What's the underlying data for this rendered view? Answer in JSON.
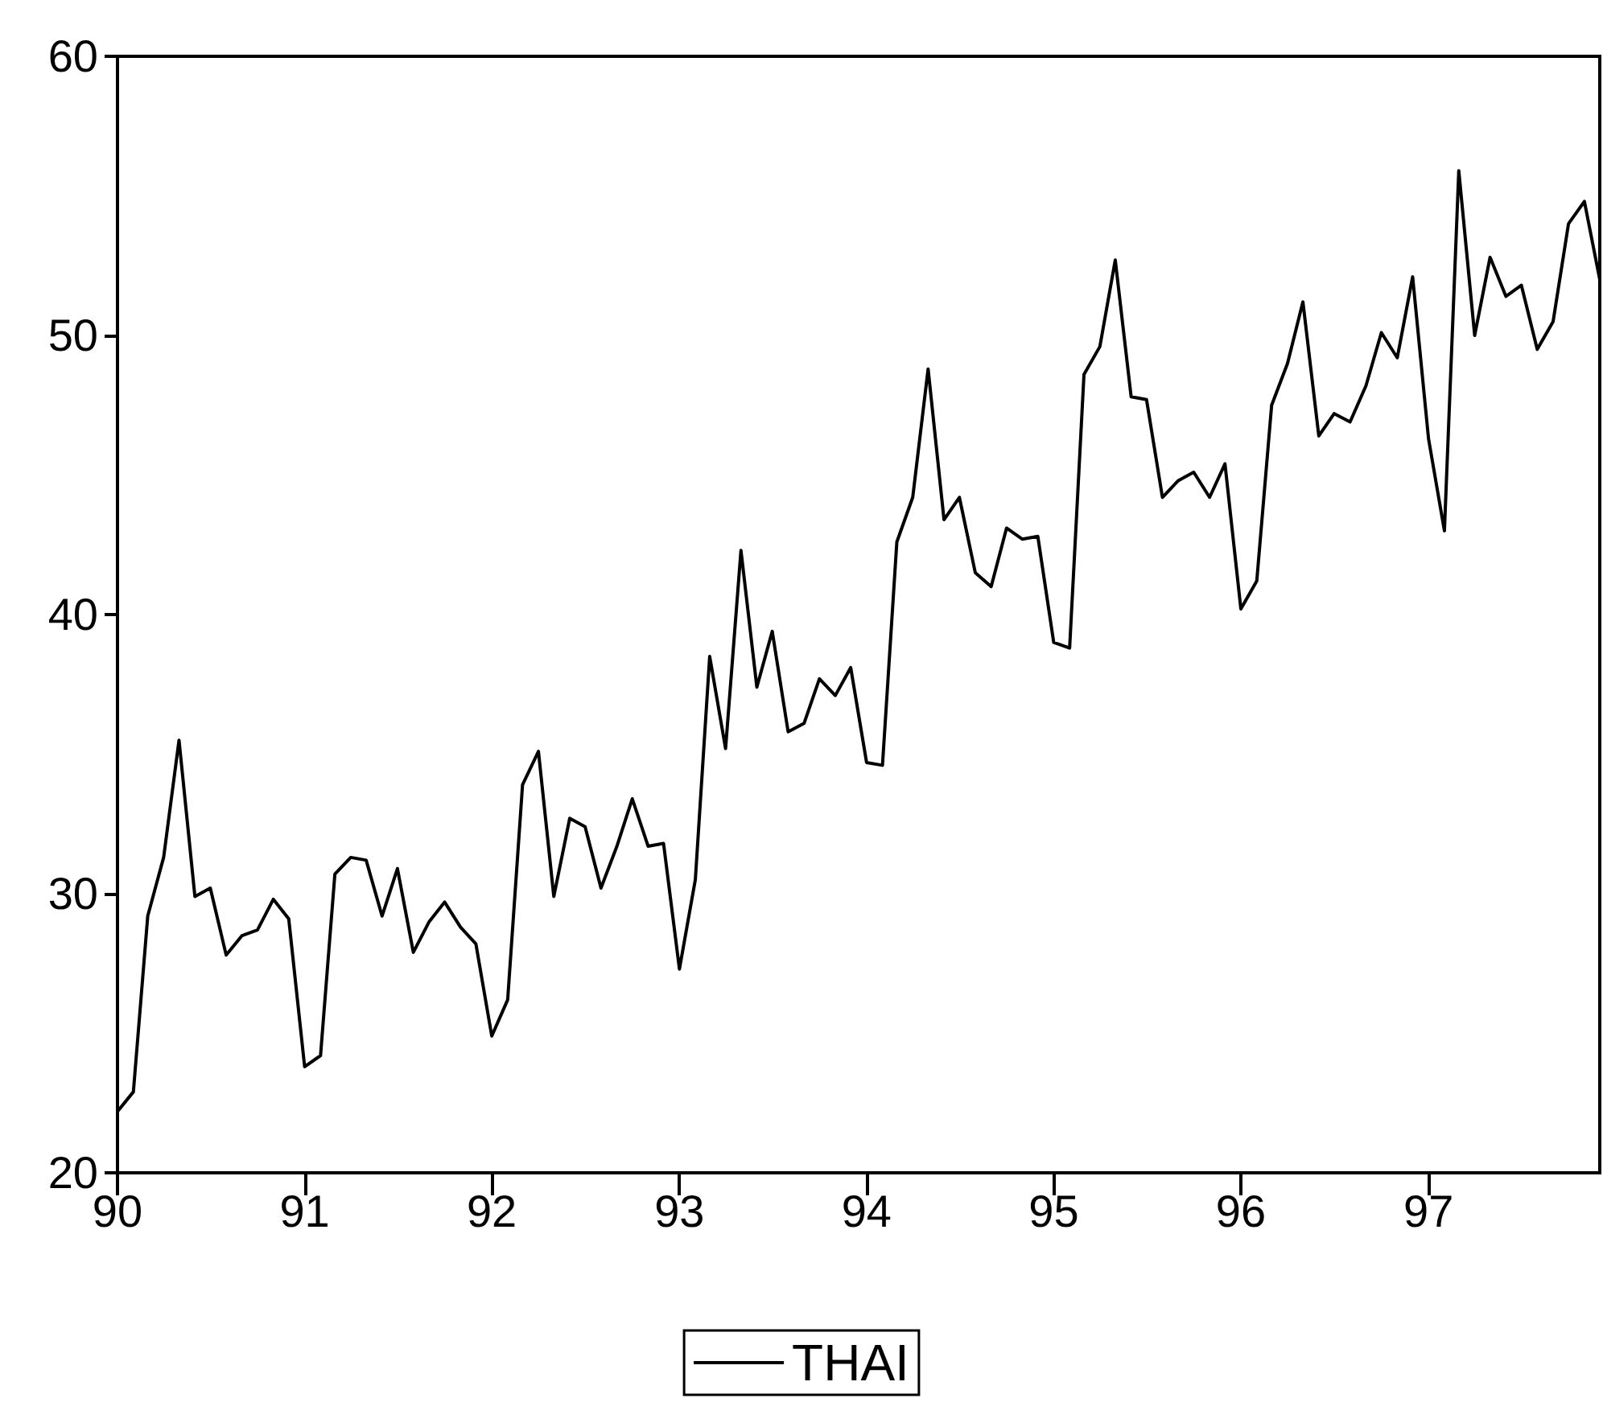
{
  "chart_data": {
    "type": "line",
    "x": [
      "1990-01",
      "1990-02",
      "1990-03",
      "1990-04",
      "1990-05",
      "1990-06",
      "1990-07",
      "1990-08",
      "1990-09",
      "1990-10",
      "1990-11",
      "1990-12",
      "1991-01",
      "1991-02",
      "1991-03",
      "1991-04",
      "1991-05",
      "1991-06",
      "1991-07",
      "1991-08",
      "1991-09",
      "1991-10",
      "1991-11",
      "1991-12",
      "1992-01",
      "1992-02",
      "1992-03",
      "1992-04",
      "1992-05",
      "1992-06",
      "1992-07",
      "1992-08",
      "1992-09",
      "1992-10",
      "1992-11",
      "1992-12",
      "1993-01",
      "1993-02",
      "1993-03",
      "1993-04",
      "1993-05",
      "1993-06",
      "1993-07",
      "1993-08",
      "1993-09",
      "1993-10",
      "1993-11",
      "1993-12",
      "1994-01",
      "1994-02",
      "1994-03",
      "1994-04",
      "1994-05",
      "1994-06",
      "1994-07",
      "1994-08",
      "1994-09",
      "1994-10",
      "1994-11",
      "1994-12",
      "1995-01",
      "1995-02",
      "1995-03",
      "1995-04",
      "1995-05",
      "1995-06",
      "1995-07",
      "1995-08",
      "1995-09",
      "1995-10",
      "1995-11",
      "1995-12",
      "1996-01",
      "1996-02",
      "1996-03",
      "1996-04",
      "1996-05",
      "1996-06",
      "1996-07",
      "1996-08",
      "1996-09",
      "1996-10",
      "1996-11",
      "1996-12",
      "1997-01",
      "1997-02",
      "1997-03",
      "1997-04",
      "1997-05",
      "1997-06",
      "1997-07",
      "1997-08",
      "1997-09",
      "1997-10",
      "1997-11",
      "1997-12"
    ],
    "series": [
      {
        "name": "THAI",
        "color": "#000000",
        "values": [
          22.2,
          22.9,
          29.2,
          31.3,
          35.5,
          29.9,
          30.2,
          27.8,
          28.5,
          28.7,
          29.8,
          29.1,
          23.8,
          24.2,
          30.7,
          31.3,
          31.2,
          29.2,
          30.9,
          27.9,
          29.0,
          29.7,
          28.8,
          28.2,
          24.9,
          26.2,
          33.9,
          35.1,
          29.9,
          32.7,
          32.4,
          30.2,
          31.7,
          33.4,
          31.7,
          31.8,
          27.3,
          30.5,
          38.5,
          35.2,
          42.3,
          37.4,
          39.4,
          35.8,
          36.1,
          37.7,
          37.1,
          38.1,
          34.7,
          34.6,
          42.6,
          44.2,
          48.8,
          43.4,
          44.2,
          41.5,
          41.0,
          43.1,
          42.7,
          42.8,
          39.0,
          38.8,
          48.6,
          49.6,
          52.7,
          47.8,
          47.7,
          44.2,
          44.8,
          45.1,
          44.2,
          45.4,
          40.2,
          41.2,
          47.5,
          49.0,
          51.2,
          46.4,
          47.2,
          46.9,
          48.2,
          50.1,
          49.2,
          52.1,
          46.3,
          43.0,
          55.9,
          50.0,
          52.8,
          51.4,
          51.8,
          49.5,
          50.5,
          54.0,
          54.8,
          52.0
        ]
      }
    ],
    "xlim": [
      "1990-01",
      "1997-12"
    ],
    "xticks": [
      {
        "value": "1990-01",
        "label": "90"
      },
      {
        "value": "1991-01",
        "label": "91"
      },
      {
        "value": "1992-01",
        "label": "92"
      },
      {
        "value": "1993-01",
        "label": "93"
      },
      {
        "value": "1994-01",
        "label": "94"
      },
      {
        "value": "1995-01",
        "label": "95"
      },
      {
        "value": "1996-01",
        "label": "96"
      },
      {
        "value": "1997-01",
        "label": "97"
      }
    ],
    "ylim": [
      20,
      60
    ],
    "yticks": [
      20,
      30,
      40,
      50,
      60
    ],
    "grid": false,
    "legend": "bottom",
    "marker": "none",
    "line_style": "solid"
  }
}
